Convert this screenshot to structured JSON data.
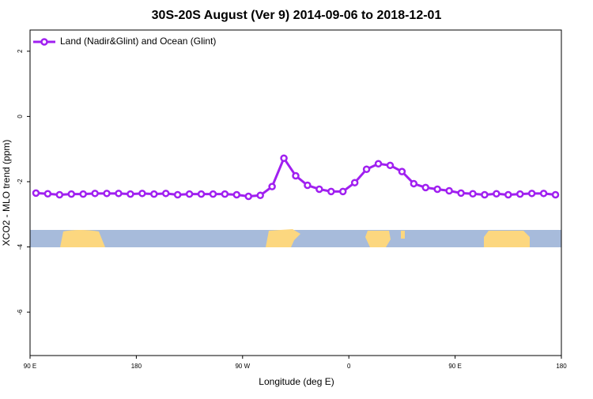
{
  "chart_data": {
    "type": "line",
    "title": "30S-20S August (Ver 9)   2014-09-06 to 2018-12-01",
    "xlabel": "Longitude (deg E)",
    "ylabel": "XCO2 - MLO trend (ppm)",
    "x": [
      95,
      105,
      115,
      125,
      135,
      145,
      155,
      165,
      175,
      185,
      195,
      205,
      215,
      225,
      235,
      245,
      255,
      265,
      275,
      285,
      295,
      305,
      315,
      325,
      335,
      345,
      355,
      365,
      375,
      385,
      395,
      405,
      415,
      425,
      435,
      445,
      455,
      465,
      475,
      485,
      495,
      505,
      515,
      525,
      535
    ],
    "series": [
      {
        "name": "Land (Nadir&Glint) and Ocean (Glint)",
        "color": "#a020f0",
        "values": [
          -2.35,
          -2.37,
          -2.4,
          -2.38,
          -2.38,
          -2.36,
          -2.36,
          -2.36,
          -2.38,
          -2.36,
          -2.38,
          -2.36,
          -2.4,
          -2.38,
          -2.38,
          -2.38,
          -2.38,
          -2.4,
          -2.45,
          -2.42,
          -2.15,
          -1.28,
          -1.82,
          -2.11,
          -2.23,
          -2.3,
          -2.3,
          -2.03,
          -1.62,
          -1.45,
          -1.5,
          -1.69,
          -2.06,
          -2.18,
          -2.23,
          -2.28,
          -2.35,
          -2.37,
          -2.4,
          -2.37,
          -2.4,
          -2.38,
          -2.36,
          -2.36,
          -2.4
        ]
      }
    ],
    "xlim": [
      90,
      540
    ],
    "xticks": [
      {
        "value": 90,
        "label": "90 E"
      },
      180,
      {
        "value": 270,
        "label": "90 W"
      },
      {
        "value": 360,
        "label": "0"
      },
      {
        "value": 450,
        "label": "90 E"
      },
      {
        "value": 540,
        "label": "180"
      }
    ],
    "ylim": [
      -7.33,
      2.65
    ],
    "yticks": [
      2,
      0,
      -2,
      -4,
      -6
    ],
    "legend": "top-left"
  }
}
